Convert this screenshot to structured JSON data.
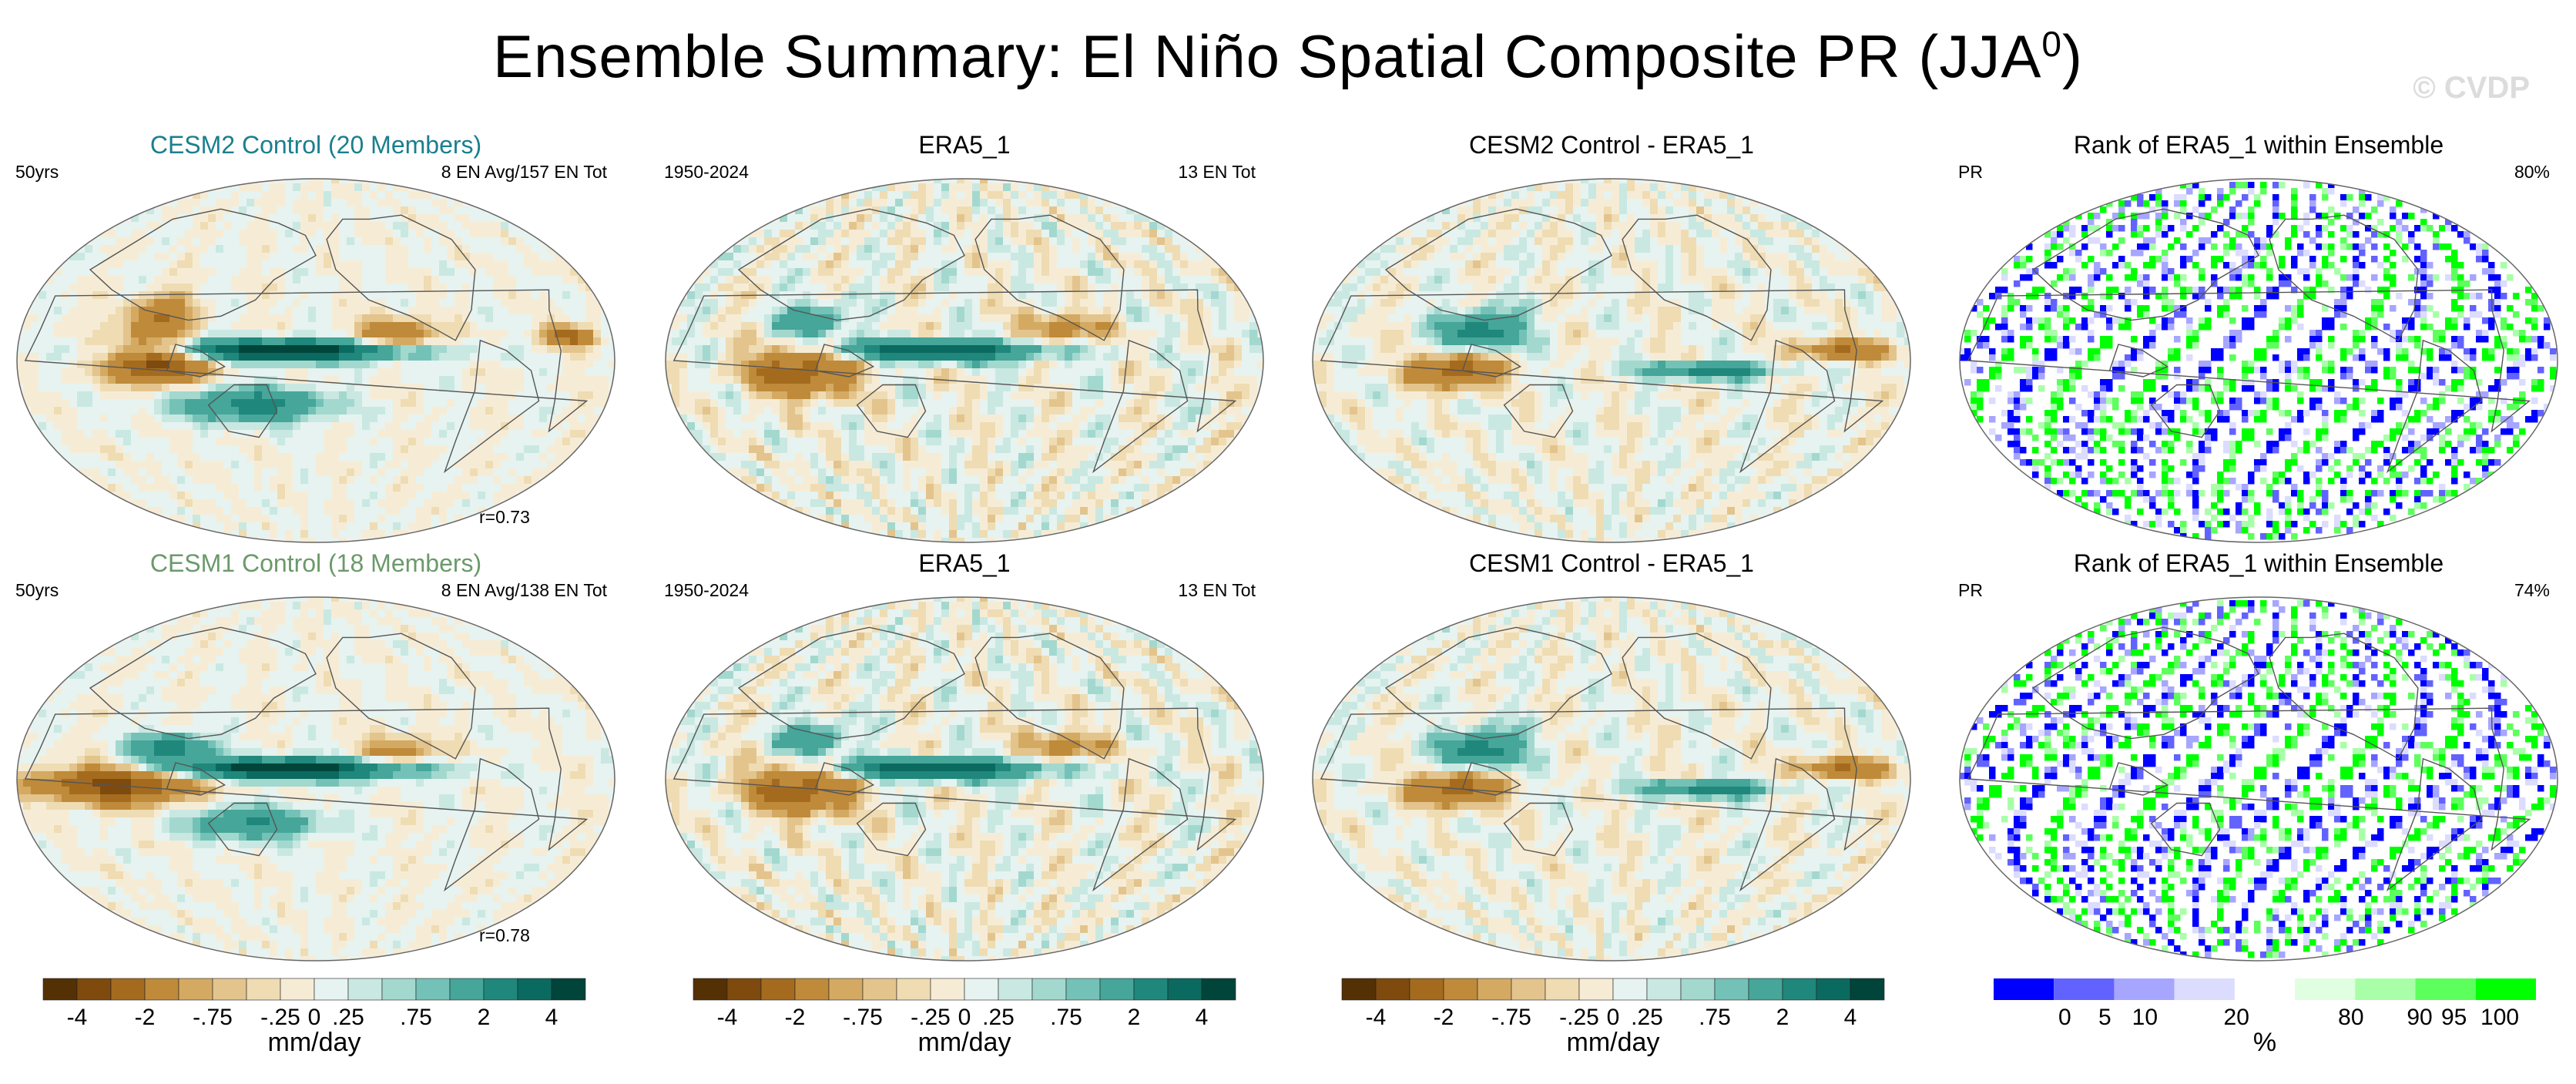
{
  "header": {
    "title_main": "Ensemble Summary: El Niño Spatial Composite PR (JJA",
    "title_sup": "0",
    "title_close": ")",
    "watermark": "© CVDP"
  },
  "colors": {
    "title_cesm2": "#1a7f8e",
    "title_cesm1": "#6b9a6b",
    "diverging": [
      "#543005",
      "#7f4a0d",
      "#a46b1f",
      "#bf8a3a",
      "#d4aa62",
      "#e3c48d",
      "#efdcb3",
      "#f6ecd6",
      "#e6f3f0",
      "#c9e8e2",
      "#a3d8cf",
      "#74c2b7",
      "#45a699",
      "#1f877b",
      "#0b6a5f",
      "#01453a"
    ],
    "rank": [
      "#0000ff",
      "#6262ff",
      "#a6a6ff",
      "#dcdcff",
      "#ffffff",
      "#e0ffe0",
      "#a8ffa8",
      "#5cff5c",
      "#00ff00"
    ]
  },
  "rows": [
    {
      "panels": [
        {
          "title": "CESM2 Control (20 Members)",
          "left_text": "50yrs",
          "right_text": "8 EN Avg/157 EN Tot",
          "corner_text": "r=0.73",
          "kind": "model_cesm2"
        },
        {
          "title": "ERA5_1",
          "left_text": "1950-2024",
          "right_text": "13 EN Tot",
          "corner_text": "",
          "kind": "obs"
        },
        {
          "title": "CESM2 Control - ERA5_1",
          "left_text": "",
          "right_text": "",
          "corner_text": "",
          "kind": "diff"
        },
        {
          "title": "Rank of ERA5_1 within Ensemble",
          "left_text": "PR",
          "right_text": "80%",
          "corner_text": "",
          "kind": "rank"
        }
      ]
    },
    {
      "panels": [
        {
          "title": "CESM1 Control (18 Members)",
          "left_text": "50yrs",
          "right_text": "8 EN Avg/138 EN Tot",
          "corner_text": "r=0.78",
          "kind": "model_cesm1"
        },
        {
          "title": "ERA5_1",
          "left_text": "1950-2024",
          "right_text": "13 EN Tot",
          "corner_text": "",
          "kind": "obs"
        },
        {
          "title": "CESM1 Control - ERA5_1",
          "left_text": "",
          "right_text": "",
          "corner_text": "",
          "kind": "diff"
        },
        {
          "title": "Rank of ERA5_1 within Ensemble",
          "left_text": "PR",
          "right_text": "74%",
          "corner_text": "",
          "kind": "rank"
        }
      ]
    }
  ],
  "colorbars": [
    {
      "label": "mm/day",
      "ticks": [
        "-4",
        "-2",
        "-.75",
        "-.25",
        "0",
        ".25",
        ".75",
        "2",
        "4"
      ]
    },
    {
      "label": "mm/day",
      "ticks": [
        "-4",
        "-2",
        "-.75",
        "-.25",
        "0",
        ".25",
        ".75",
        "2",
        "4"
      ]
    },
    {
      "label": "mm/day",
      "ticks": [
        "-4",
        "-2",
        "-.75",
        "-.25",
        "0",
        ".25",
        ".75",
        "2",
        "4"
      ]
    },
    {
      "label": "%",
      "ticks": [
        "0",
        "5",
        "10",
        "20",
        "80",
        "90",
        "95",
        "100"
      ]
    }
  ],
  "chart_data": {
    "type": "heatmap",
    "title": "Ensemble Summary: El Niño Spatial Composite PR (JJA0)",
    "variable": "PR",
    "units": "mm/day",
    "diverging_levels": [
      -4,
      -2,
      -0.75,
      -0.25,
      0,
      0.25,
      0.75,
      2,
      4
    ],
    "rank_levels_percent": [
      0,
      5,
      10,
      20,
      80,
      90,
      95,
      100
    ],
    "pattern_correlation": {
      "CESM2 Control": 0.73,
      "CESM1 Control": 0.78
    },
    "rank_within_range_percent": {
      "CESM2 Control": 80,
      "CESM1 Control": 74
    }
  }
}
